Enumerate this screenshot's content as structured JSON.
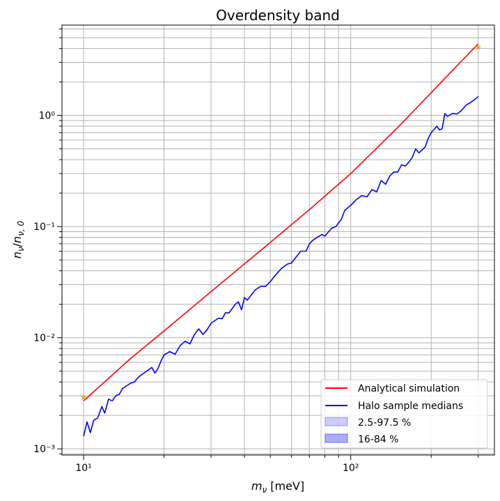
{
  "chart_data": {
    "type": "line",
    "title": "Overdensity band",
    "xlabel": "m_ν [meV]",
    "ylabel": "n_ν/n_ν,0",
    "xscale": "log",
    "yscale": "log",
    "xlim": [
      8.3,
      345
    ],
    "ylim": [
      0.00088,
      6.5
    ],
    "x_ticks": [
      10,
      100
    ],
    "x_tick_labels": [
      "10¹",
      "10²"
    ],
    "y_ticks": [
      0.001,
      0.01,
      0.1,
      1
    ],
    "y_tick_labels": [
      "10⁻³",
      "10⁻²",
      "10⁻¹",
      "10⁰"
    ],
    "grid": "major and minor",
    "legend_position": "lower-right",
    "series": [
      {
        "name": "Analytical simulation",
        "color": "#ff0000",
        "x": [
          10,
          15,
          20,
          30,
          50,
          70,
          100,
          150,
          200,
          250,
          300
        ],
        "y": [
          0.0027,
          0.0065,
          0.0115,
          0.026,
          0.072,
          0.142,
          0.3,
          0.78,
          1.6,
          2.8,
          4.4
        ]
      },
      {
        "name": "Halo sample medians",
        "color": "#0000ff",
        "x": [
          10,
          10.3,
          10.6,
          10.9,
          11.3,
          11.7,
          12,
          12.4,
          12.8,
          13.2,
          13.6,
          14,
          14.5,
          15,
          15.5,
          16,
          17,
          18,
          18.5,
          19,
          19.5,
          20,
          21,
          22,
          22.5,
          23,
          24,
          25,
          26,
          27,
          28,
          29,
          30,
          32,
          33,
          34,
          35,
          37,
          38,
          39,
          40,
          41,
          42,
          44,
          46,
          48,
          50,
          52,
          55,
          58,
          60,
          62,
          65,
          68,
          70,
          72,
          75,
          78,
          80,
          82,
          85,
          88,
          90,
          92,
          95,
          100,
          105,
          110,
          115,
          120,
          125,
          130,
          135,
          140,
          145,
          150,
          155,
          160,
          165,
          170,
          175,
          180,
          185,
          190,
          195,
          200,
          210,
          215,
          220,
          225,
          230,
          240,
          250,
          260,
          270,
          280,
          290,
          300
        ],
        "y": [
          0.0013,
          0.00175,
          0.0014,
          0.0018,
          0.0019,
          0.0024,
          0.0021,
          0.0028,
          0.0027,
          0.003,
          0.0031,
          0.0035,
          0.0037,
          0.0039,
          0.004,
          0.0044,
          0.0049,
          0.0054,
          0.0048,
          0.0053,
          0.0062,
          0.007,
          0.0075,
          0.0071,
          0.0078,
          0.0085,
          0.0093,
          0.0088,
          0.0107,
          0.012,
          0.0107,
          0.0118,
          0.0135,
          0.015,
          0.0148,
          0.0168,
          0.0167,
          0.02,
          0.021,
          0.0178,
          0.023,
          0.0218,
          0.0235,
          0.027,
          0.029,
          0.029,
          0.032,
          0.036,
          0.042,
          0.046,
          0.047,
          0.052,
          0.06,
          0.06,
          0.07,
          0.075,
          0.08,
          0.085,
          0.082,
          0.088,
          0.097,
          0.1,
          0.108,
          0.115,
          0.14,
          0.155,
          0.175,
          0.19,
          0.185,
          0.215,
          0.205,
          0.26,
          0.24,
          0.285,
          0.31,
          0.31,
          0.36,
          0.35,
          0.38,
          0.42,
          0.5,
          0.46,
          0.49,
          0.52,
          0.62,
          0.7,
          0.8,
          0.74,
          0.76,
          1.04,
          0.98,
          1.04,
          1.03,
          1.11,
          1.24,
          1.3,
          1.38,
          1.48
        ]
      }
    ],
    "markers": [
      {
        "x": 10,
        "y": 0.0029,
        "color": "#f5a623"
      },
      {
        "x": 300,
        "y": 4.1,
        "color": "#f5a623"
      }
    ],
    "bands": [
      {
        "name": "2.5-97.5 %",
        "color": "#0000ff",
        "opacity": 0.2
      },
      {
        "name": "16-84 %",
        "color": "#0000ff",
        "opacity": 0.32
      }
    ]
  }
}
